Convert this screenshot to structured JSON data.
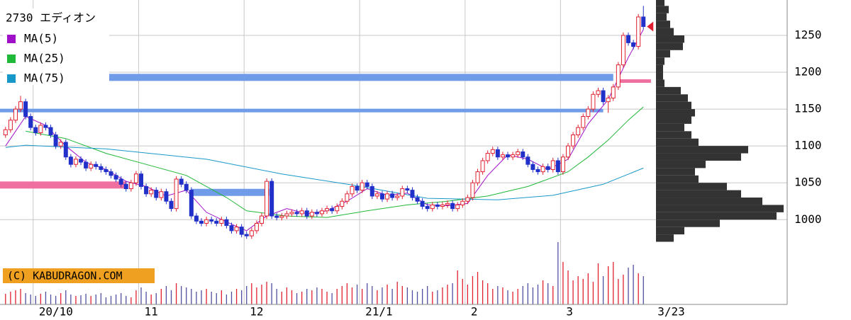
{
  "chart_data": {
    "type": "candlestick",
    "title": "2730 エディオン",
    "copyright": "(C) KABUDRAGON.COM",
    "last_date_label": "3/23",
    "xlim": [
      -1.1,
      128.8
    ],
    "ylim": [
      885,
      1298
    ],
    "yticks": [
      1000,
      1050,
      1100,
      1150,
      1200,
      1250
    ],
    "xticks": [
      {
        "value": 6,
        "label": "20/10"
      },
      {
        "value": 27,
        "label": "11"
      },
      {
        "value": 48,
        "label": "12"
      },
      {
        "value": 71,
        "label": "21/1"
      },
      {
        "value": 92,
        "label": "2"
      },
      {
        "value": 111,
        "label": "3"
      }
    ],
    "grid": true,
    "up_color": "#e02030",
    "down_color": "#2030c8",
    "open": [
      1115,
      1122,
      1135,
      1150,
      1160,
      1140,
      1125,
      1118,
      1128,
      1125,
      1115,
      1100,
      1105,
      1085,
      1075,
      1082,
      1078,
      1070,
      1075,
      1072,
      1068,
      1065,
      1060,
      1055,
      1048,
      1042,
      1050,
      1062,
      1045,
      1035,
      1040,
      1030,
      1038,
      1025,
      1015,
      1055,
      1048,
      1040,
      1005,
      998,
      995,
      1000,
      998,
      995,
      1000,
      992,
      985,
      990,
      980,
      978,
      985,
      995,
      1005,
      1052,
      1005,
      1003,
      1005,
      1008,
      1010,
      1008,
      1012,
      1005,
      1010,
      1008,
      1012,
      1015,
      1012,
      1018,
      1025,
      1035,
      1045,
      1040,
      1050,
      1045,
      1032,
      1035,
      1028,
      1035,
      1030,
      1032,
      1042,
      1040,
      1030,
      1025,
      1018,
      1015,
      1020,
      1018,
      1020,
      1022,
      1015,
      1020,
      1025,
      1030,
      1050,
      1065,
      1080,
      1090,
      1095,
      1085,
      1088,
      1085,
      1088,
      1092,
      1085,
      1075,
      1068,
      1065,
      1072,
      1068,
      1080,
      1065,
      1085,
      1100,
      1115,
      1125,
      1140,
      1150,
      1170,
      1175,
      1160,
      1165,
      1180,
      1210,
      1250,
      1240,
      1235,
      1275
    ],
    "high": [
      1126,
      1139,
      1154,
      1168,
      1164,
      1144,
      1129,
      1132,
      1132,
      1129,
      1119,
      1109,
      1109,
      1089,
      1086,
      1086,
      1082,
      1079,
      1079,
      1076,
      1072,
      1069,
      1064,
      1059,
      1052,
      1054,
      1066,
      1066,
      1049,
      1044,
      1044,
      1042,
      1042,
      1029,
      1059,
      1059,
      1052,
      1044,
      1009,
      1002,
      1004,
      1004,
      1002,
      1004,
      1004,
      996,
      994,
      994,
      984,
      989,
      999,
      1009,
      1056,
      1056,
      1009,
      1009,
      1012,
      1014,
      1014,
      1016,
      1016,
      1014,
      1014,
      1016,
      1019,
      1019,
      1022,
      1029,
      1039,
      1049,
      1049,
      1054,
      1054,
      1049,
      1039,
      1039,
      1039,
      1039,
      1036,
      1046,
      1046,
      1044,
      1034,
      1029,
      1022,
      1024,
      1024,
      1024,
      1026,
      1026,
      1024,
      1029,
      1034,
      1054,
      1069,
      1084,
      1094,
      1099,
      1099,
      1092,
      1092,
      1092,
      1096,
      1096,
      1089,
      1079,
      1072,
      1076,
      1076,
      1084,
      1084,
      1089,
      1104,
      1119,
      1129,
      1144,
      1154,
      1174,
      1179,
      1179,
      1169,
      1184,
      1214,
      1254,
      1254,
      1244,
      1279,
      1290
    ],
    "low": [
      1111,
      1118,
      1131,
      1146,
      1136,
      1121,
      1114,
      1114,
      1121,
      1111,
      1096,
      1096,
      1081,
      1071,
      1071,
      1074,
      1066,
      1066,
      1068,
      1064,
      1061,
      1056,
      1051,
      1044,
      1038,
      1038,
      1046,
      1041,
      1031,
      1031,
      1026,
      1026,
      1021,
      1011,
      1011,
      1044,
      1036,
      1001,
      994,
      991,
      991,
      994,
      991,
      991,
      988,
      981,
      981,
      976,
      974,
      974,
      981,
      991,
      1001,
      1001,
      999,
      999,
      1001,
      1004,
      1004,
      1004,
      1001,
      1001,
      1004,
      1004,
      1008,
      1008,
      1008,
      1014,
      1021,
      1031,
      1036,
      1036,
      1041,
      1028,
      1028,
      1024,
      1024,
      1026,
      1026,
      1028,
      1036,
      1026,
      1021,
      1014,
      1011,
      1011,
      1014,
      1014,
      1016,
      1011,
      1011,
      1016,
      1021,
      1026,
      1046,
      1061,
      1076,
      1086,
      1081,
      1081,
      1081,
      1081,
      1084,
      1081,
      1071,
      1064,
      1061,
      1061,
      1064,
      1064,
      1061,
      1061,
      1081,
      1096,
      1111,
      1121,
      1136,
      1146,
      1166,
      1156,
      1145,
      1161,
      1176,
      1206,
      1236,
      1231,
      1231,
      1258
    ],
    "close": [
      1122,
      1135,
      1150,
      1160,
      1140,
      1125,
      1118,
      1128,
      1125,
      1115,
      1100,
      1105,
      1085,
      1075,
      1082,
      1078,
      1070,
      1075,
      1072,
      1068,
      1065,
      1060,
      1055,
      1048,
      1042,
      1050,
      1062,
      1045,
      1035,
      1040,
      1030,
      1038,
      1025,
      1015,
      1055,
      1048,
      1040,
      1005,
      998,
      995,
      1000,
      998,
      995,
      1000,
      992,
      985,
      990,
      980,
      978,
      985,
      995,
      1005,
      1052,
      1005,
      1003,
      1005,
      1008,
      1010,
      1008,
      1012,
      1005,
      1010,
      1008,
      1012,
      1015,
      1012,
      1018,
      1025,
      1035,
      1045,
      1040,
      1050,
      1045,
      1032,
      1035,
      1028,
      1035,
      1030,
      1032,
      1042,
      1040,
      1030,
      1025,
      1018,
      1015,
      1020,
      1018,
      1020,
      1022,
      1015,
      1020,
      1025,
      1030,
      1050,
      1065,
      1080,
      1090,
      1095,
      1085,
      1088,
      1085,
      1088,
      1092,
      1085,
      1075,
      1068,
      1065,
      1072,
      1068,
      1080,
      1065,
      1085,
      1100,
      1115,
      1125,
      1140,
      1150,
      1170,
      1175,
      1160,
      1165,
      1180,
      1210,
      1250,
      1240,
      1235,
      1275,
      1262
    ],
    "volume_ylim": [
      0,
      100
    ],
    "volume": [
      15,
      18,
      20,
      22,
      16,
      14,
      12,
      15,
      18,
      14,
      12,
      16,
      20,
      14,
      12,
      13,
      15,
      12,
      14,
      16,
      10,
      12,
      14,
      16,
      12,
      10,
      20,
      24,
      18,
      14,
      16,
      22,
      26,
      20,
      30,
      26,
      24,
      22,
      18,
      20,
      22,
      18,
      16,
      20,
      14,
      18,
      22,
      20,
      26,
      30,
      24,
      28,
      32,
      30,
      22,
      18,
      24,
      20,
      16,
      18,
      22,
      20,
      24,
      22,
      18,
      16,
      22,
      26,
      30,
      24,
      28,
      22,
      30,
      26,
      20,
      24,
      28,
      22,
      32,
      26,
      24,
      20,
      18,
      22,
      26,
      18,
      20,
      24,
      28,
      30,
      48,
      36,
      28,
      40,
      46,
      34,
      30,
      22,
      26,
      24,
      20,
      18,
      22,
      26,
      30,
      24,
      28,
      34,
      30,
      26,
      88,
      60,
      48,
      34,
      40,
      36,
      44,
      32,
      58,
      40,
      54,
      60,
      36,
      42,
      52,
      56,
      44,
      40
    ],
    "series": [
      {
        "name": "MA(5)",
        "color": "#a010c8",
        "x": [
          0,
          4,
          8,
          12,
          16,
          20,
          24,
          28,
          32,
          36,
          40,
          44,
          48,
          52,
          56,
          60,
          64,
          68,
          72,
          76,
          80,
          84,
          88,
          92,
          96,
          100,
          104,
          108,
          112,
          116,
          120,
          124,
          127
        ],
        "values": [
          1100,
          1140,
          1128,
          1100,
          1078,
          1068,
          1052,
          1045,
          1032,
          1040,
          1010,
          997,
          985,
          1005,
          1015,
          1008,
          1012,
          1025,
          1042,
          1033,
          1036,
          1020,
          1019,
          1022,
          1060,
          1088,
          1082,
          1068,
          1082,
          1130,
          1163,
          1220,
          1258
        ]
      },
      {
        "name": "MA(25)",
        "color": "#20b838",
        "x": [
          4,
          12,
          20,
          28,
          36,
          44,
          48,
          56,
          64,
          72,
          80,
          88,
          96,
          104,
          112,
          116,
          120,
          124,
          127
        ],
        "values": [
          1120,
          1110,
          1090,
          1075,
          1060,
          1030,
          1012,
          1005,
          1003,
          1012,
          1020,
          1025,
          1032,
          1045,
          1065,
          1085,
          1108,
          1135,
          1153
        ]
      },
      {
        "name": "MA(75)",
        "color": "#1898c8",
        "x": [
          0,
          4,
          20,
          40,
          55,
          70,
          84,
          98,
          109,
          119,
          127
        ],
        "values": [
          1098,
          1101,
          1096,
          1082,
          1062,
          1046,
          1029,
          1027,
          1033,
          1048,
          1070
        ]
      }
    ],
    "levels": [
      {
        "value": 1193,
        "from": 14,
        "to": 121,
        "color": "#6f9be8",
        "style": "thick"
      },
      {
        "value": 1148,
        "from": -1.1,
        "to": 119,
        "color": "#6f9be8",
        "style": "thin"
      },
      {
        "value": 1047,
        "from": -1.1,
        "to": 24,
        "color": "#ee6fa0",
        "style": "thick"
      },
      {
        "value": 1037,
        "from": 37,
        "to": 52.5,
        "color": "#6f9be8",
        "style": "thick"
      },
      {
        "value": 1188,
        "from": 122,
        "to": 128.5,
        "color": "#ee6fa0",
        "style": "thin"
      }
    ],
    "profile": {
      "color": "#333333",
      "xlim": [
        0,
        185
      ],
      "bins": [
        970,
        980,
        990,
        1000,
        1010,
        1020,
        1030,
        1040,
        1050,
        1060,
        1070,
        1080,
        1090,
        1100,
        1110,
        1120,
        1130,
        1140,
        1150,
        1160,
        1170,
        1180,
        1190,
        1200,
        1210,
        1220,
        1230,
        1240,
        1250,
        1260,
        1270,
        1280,
        1290,
        1300
      ],
      "values": [
        25,
        40,
        90,
        170,
        180,
        150,
        120,
        100,
        60,
        55,
        70,
        120,
        130,
        60,
        50,
        40,
        50,
        55,
        50,
        45,
        35,
        12,
        10,
        10,
        12,
        20,
        38,
        40,
        25,
        20,
        15,
        18,
        12
      ]
    }
  }
}
